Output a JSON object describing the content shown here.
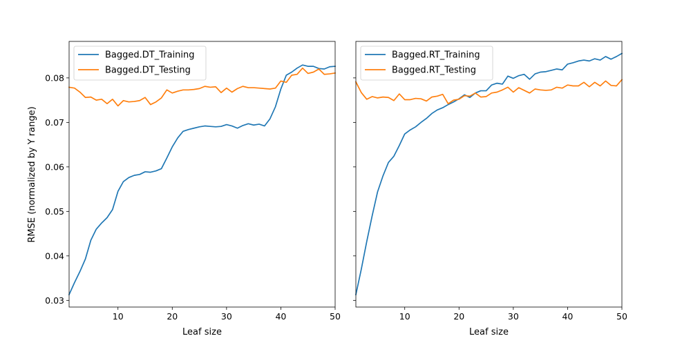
{
  "chart_data": [
    {
      "type": "line",
      "xlabel": "Leaf size",
      "ylabel": "RMSE (normalized by Y range)",
      "xlim": [
        1,
        50
      ],
      "ylim": [
        0.0285,
        0.0882
      ],
      "xticks": [
        10,
        20,
        30,
        40,
        50
      ],
      "yticks": [
        0.03,
        0.04,
        0.05,
        0.06,
        0.07,
        0.08
      ],
      "ytick_labels": [
        "0.03",
        "0.04",
        "0.05",
        "0.06",
        "0.07",
        "0.08"
      ],
      "grid": false,
      "legend": "top-left",
      "x": [
        1,
        2,
        3,
        4,
        5,
        6,
        7,
        8,
        9,
        10,
        11,
        12,
        13,
        14,
        15,
        16,
        17,
        18,
        19,
        20,
        21,
        22,
        23,
        24,
        25,
        26,
        27,
        28,
        29,
        30,
        31,
        32,
        33,
        34,
        35,
        36,
        37,
        38,
        39,
        40,
        41,
        42,
        43,
        44,
        45,
        46,
        47,
        48,
        49,
        50
      ],
      "series": [
        {
          "name": "Bagged.DT_Training",
          "color": "#1f77b4",
          "values": [
            0.0313,
            0.034,
            0.0365,
            0.0393,
            0.0435,
            0.046,
            0.0474,
            0.0486,
            0.0504,
            0.0545,
            0.0567,
            0.0576,
            0.0581,
            0.0583,
            0.0589,
            0.0588,
            0.0591,
            0.0596,
            0.062,
            0.0645,
            0.0665,
            0.068,
            0.0684,
            0.0687,
            0.069,
            0.0692,
            0.0691,
            0.069,
            0.0691,
            0.0695,
            0.0692,
            0.0687,
            0.0693,
            0.0697,
            0.0694,
            0.0696,
            0.0692,
            0.0708,
            0.0735,
            0.0775,
            0.0806,
            0.0813,
            0.0822,
            0.0829,
            0.0826,
            0.0826,
            0.0821,
            0.082,
            0.0825,
            0.0826
          ]
        },
        {
          "name": "Bagged.DT_Testing",
          "color": "#ff7f0e",
          "values": [
            0.0779,
            0.0777,
            0.0768,
            0.0756,
            0.0757,
            0.075,
            0.0752,
            0.0742,
            0.0752,
            0.0737,
            0.0749,
            0.0746,
            0.0747,
            0.0749,
            0.0756,
            0.074,
            0.0746,
            0.0755,
            0.0773,
            0.0766,
            0.077,
            0.0773,
            0.0773,
            0.0774,
            0.0776,
            0.0781,
            0.0779,
            0.078,
            0.0767,
            0.0777,
            0.0768,
            0.0776,
            0.0781,
            0.0778,
            0.0778,
            0.0777,
            0.0776,
            0.0775,
            0.0777,
            0.0793,
            0.079,
            0.0806,
            0.0808,
            0.0822,
            0.081,
            0.0813,
            0.082,
            0.0808,
            0.0809,
            0.0811
          ]
        }
      ]
    },
    {
      "type": "line",
      "xlabel": "Leaf size",
      "ylabel": "",
      "xlim": [
        1,
        50
      ],
      "ylim": [
        0.0285,
        0.0882
      ],
      "xticks": [
        10,
        20,
        30,
        40,
        50
      ],
      "yticks": [
        0.03,
        0.04,
        0.05,
        0.06,
        0.07,
        0.08
      ],
      "ytick_labels": [],
      "grid": false,
      "legend": "top-left",
      "x": [
        1,
        2,
        3,
        4,
        5,
        6,
        7,
        8,
        9,
        10,
        11,
        12,
        13,
        14,
        15,
        16,
        17,
        18,
        19,
        20,
        21,
        22,
        23,
        24,
        25,
        26,
        27,
        28,
        29,
        30,
        31,
        32,
        33,
        34,
        35,
        36,
        37,
        38,
        39,
        40,
        41,
        42,
        43,
        44,
        45,
        46,
        47,
        48,
        49,
        50
      ],
      "series": [
        {
          "name": "Bagged.RT_Training",
          "color": "#1f77b4",
          "values": [
            0.0313,
            0.037,
            0.0432,
            0.049,
            0.0544,
            0.058,
            0.061,
            0.0624,
            0.0648,
            0.0674,
            0.0683,
            0.069,
            0.07,
            0.0709,
            0.072,
            0.0728,
            0.0733,
            0.074,
            0.0746,
            0.0753,
            0.0762,
            0.0756,
            0.0766,
            0.0771,
            0.0771,
            0.0784,
            0.0788,
            0.0786,
            0.0804,
            0.0799,
            0.0805,
            0.0808,
            0.0797,
            0.0809,
            0.0813,
            0.0814,
            0.0817,
            0.082,
            0.0818,
            0.0831,
            0.0834,
            0.0838,
            0.084,
            0.0838,
            0.0843,
            0.084,
            0.0848,
            0.0842,
            0.0848,
            0.0855
          ]
        },
        {
          "name": "Bagged.RT_Testing",
          "color": "#ff7f0e",
          "values": [
            0.0791,
            0.0767,
            0.0752,
            0.0758,
            0.0755,
            0.0757,
            0.0756,
            0.0749,
            0.0764,
            0.0751,
            0.0751,
            0.0754,
            0.0753,
            0.0748,
            0.0757,
            0.0759,
            0.0763,
            0.0742,
            0.075,
            0.0752,
            0.076,
            0.0759,
            0.0766,
            0.0757,
            0.0758,
            0.0766,
            0.0768,
            0.0773,
            0.0779,
            0.0768,
            0.0778,
            0.0772,
            0.0766,
            0.0775,
            0.0773,
            0.0772,
            0.0773,
            0.0779,
            0.0777,
            0.0784,
            0.0782,
            0.0782,
            0.079,
            0.078,
            0.079,
            0.0782,
            0.0793,
            0.0783,
            0.0782,
            0.0796
          ]
        }
      ]
    }
  ]
}
